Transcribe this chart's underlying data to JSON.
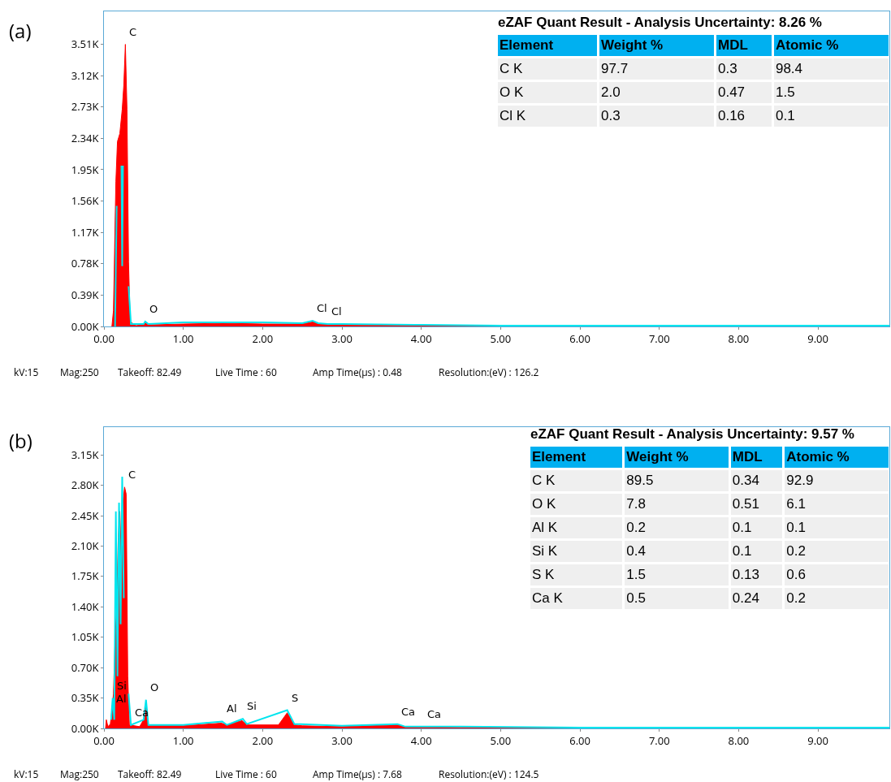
{
  "chart_data": [
    {
      "type": "area",
      "title": "(a)",
      "xlim": [
        0,
        9.9
      ],
      "ylim": [
        0,
        3920
      ],
      "grid": false,
      "xticks": [
        {
          "value": 0,
          "label": "0.00"
        },
        {
          "value": 1,
          "label": "1.00"
        },
        {
          "value": 2,
          "label": "2.00"
        },
        {
          "value": 3,
          "label": "3.00"
        },
        {
          "value": 4,
          "label": "4.00"
        },
        {
          "value": 5,
          "label": "5.00"
        },
        {
          "value": 6,
          "label": "6.00"
        },
        {
          "value": 7,
          "label": "7.00"
        },
        {
          "value": 8,
          "label": "8.00"
        },
        {
          "value": 9,
          "label": "9.00"
        }
      ],
      "yticks": [
        {
          "value": 0,
          "label": "0.00K"
        },
        {
          "value": 390,
          "label": "0.39K"
        },
        {
          "value": 780,
          "label": "0.78K"
        },
        {
          "value": 1170,
          "label": "1.17K"
        },
        {
          "value": 1560,
          "label": "1.56K"
        },
        {
          "value": 1950,
          "label": "1.95K"
        },
        {
          "value": 2340,
          "label": "2.34K"
        },
        {
          "value": 2730,
          "label": "2.73K"
        },
        {
          "value": 3120,
          "label": "3.12K"
        },
        {
          "value": 3510,
          "label": "3.51K"
        }
      ],
      "series": [
        {
          "type": "area",
          "color": "#ff0000",
          "x": [
            0.1,
            0.12,
            0.15,
            0.17,
            0.2,
            0.23,
            0.25,
            0.27,
            0.29,
            0.31,
            0.33,
            0.4,
            0.5,
            0.52,
            0.55,
            0.6,
            1.0,
            1.5,
            2.0,
            2.5,
            2.6,
            2.65,
            2.7,
            3.0,
            4.0,
            5.0,
            7.0,
            9.9
          ],
          "values": [
            0,
            200,
            1800,
            2300,
            2400,
            2700,
            3000,
            3510,
            2700,
            800,
            60,
            10,
            20,
            50,
            20,
            20,
            30,
            40,
            30,
            30,
            50,
            60,
            30,
            20,
            10,
            10,
            0,
            0
          ]
        },
        {
          "type": "line",
          "color": "#00e5ee",
          "x": [
            0.14,
            0.16,
            0.175,
            0.2,
            0.22,
            0.23,
            0.24,
            0.27,
            0.285,
            0.31,
            0.34,
            0.5,
            0.52,
            0.56,
            1.0,
            1.5,
            2.0,
            2.5,
            2.63,
            2.7,
            2.82,
            3.0,
            4.0,
            5.0,
            7.0,
            9.9
          ],
          "values": [
            0,
            1500,
            null,
            null,
            2000,
            750,
            2000,
            null,
            null,
            500,
            30,
            30,
            60,
            30,
            50,
            50,
            50,
            40,
            70,
            40,
            30,
            30,
            20,
            10,
            10,
            10
          ]
        }
      ],
      "annotations": [
        {
          "text": "C",
          "x": 0.27,
          "y": 3510
        },
        {
          "text": "O",
          "x": 0.52,
          "y": 60
        },
        {
          "text": "Cl",
          "x": 2.63,
          "y": 70
        },
        {
          "text": "Cl",
          "x": 2.82,
          "y": 30
        },
        "kV:15",
        "Mag:250",
        "Takeoff: 82.49",
        "Live Time : 60",
        "Amp Time(μs) : 0.48",
        "Resolution:(eV) : 126.2"
      ]
    },
    {
      "type": "other",
      "title": "eZAF Quant Result - Analysis Uncertainty: 8.26 %",
      "annotations": [
        "Element",
        "Weight %",
        "MDL",
        "Atomic %",
        "C K",
        "97.7",
        "0.3",
        "98.4",
        "O K",
        "2.0",
        "0.47",
        "1.5",
        "Cl K",
        "0.3",
        "0.16",
        "0.1"
      ]
    },
    {
      "type": "area",
      "title": "(b)",
      "xlim": [
        0,
        9.9
      ],
      "ylim": [
        0,
        3470
      ],
      "grid": false,
      "xticks": [
        {
          "value": 0,
          "label": "0.00"
        },
        {
          "value": 1,
          "label": "1.00"
        },
        {
          "value": 2,
          "label": "2.00"
        },
        {
          "value": 3,
          "label": "3.00"
        },
        {
          "value": 4,
          "label": "4.00"
        },
        {
          "value": 5,
          "label": "5.00"
        },
        {
          "value": 6,
          "label": "6.00"
        },
        {
          "value": 7,
          "label": "7.00"
        },
        {
          "value": 8,
          "label": "8.00"
        },
        {
          "value": 9,
          "label": "9.00"
        }
      ],
      "yticks": [
        {
          "value": 0,
          "label": "0.00K"
        },
        {
          "value": 350,
          "label": "0.35K"
        },
        {
          "value": 700,
          "label": "0.70K"
        },
        {
          "value": 1050,
          "label": "1.05K"
        },
        {
          "value": 1400,
          "label": "1.40K"
        },
        {
          "value": 1750,
          "label": "1.75K"
        },
        {
          "value": 2100,
          "label": "2.10K"
        },
        {
          "value": 2450,
          "label": "2.45K"
        },
        {
          "value": 2800,
          "label": "2.80K"
        },
        {
          "value": 3150,
          "label": "3.15K"
        }
      ],
      "series": [
        {
          "type": "area",
          "color": "#ff0000",
          "x": [
            0.02,
            0.03,
            0.05,
            0.08,
            0.1,
            0.12,
            0.14,
            0.16,
            0.18,
            0.2,
            0.22,
            0.24,
            0.26,
            0.28,
            0.3,
            0.32,
            0.45,
            0.5,
            0.53,
            0.56,
            1.0,
            1.48,
            1.55,
            1.74,
            1.8,
            2.2,
            2.31,
            2.4,
            2.5,
            3.0,
            3.69,
            3.8,
            4.5,
            6.0,
            9.9
          ],
          "values": [
            0,
            100,
            20,
            50,
            200,
            400,
            1000,
            1400,
            2200,
            2500,
            1900,
            2600,
            2780,
            2700,
            600,
            40,
            20,
            100,
            250,
            30,
            30,
            60,
            40,
            90,
            40,
            40,
            180,
            40,
            30,
            20,
            40,
            20,
            10,
            10,
            0
          ]
        },
        {
          "type": "line",
          "color": "#00e5ee",
          "x": [
            0.09,
            0.11,
            0.13,
            0.15,
            0.17,
            0.19,
            0.21,
            0.23,
            0.25,
            0.275,
            0.28,
            0.29,
            0.31,
            0.34,
            0.5,
            0.53,
            0.56,
            1.0,
            1.49,
            1.55,
            1.75,
            1.8,
            2.31,
            2.4,
            2.48,
            3.0,
            3.7,
            3.8,
            4.02,
            4.5,
            6.0,
            9.9
          ],
          "values": [
            100,
            350,
            100,
            2500,
            600,
            2600,
            1200,
            2900,
            1500,
            null,
            null,
            null,
            400,
            40,
            100,
            330,
            40,
            40,
            80,
            40,
            110,
            50,
            210,
            50,
            50,
            30,
            50,
            20,
            20,
            20,
            10,
            10
          ]
        }
      ],
      "annotations": [
        {
          "text": "C",
          "x": 0.26,
          "y": 2780
        },
        {
          "text": "Si",
          "x": 0.11,
          "y": 350
        },
        {
          "text": "Al",
          "x": 0.1,
          "y": 200
        },
        {
          "text": "Ca",
          "x": 0.34,
          "y": 40
        },
        {
          "text": "O",
          "x": 0.53,
          "y": 330
        },
        {
          "text": "Al",
          "x": 1.49,
          "y": 80
        },
        {
          "text": "Si",
          "x": 1.75,
          "y": 110
        },
        {
          "text": "S",
          "x": 2.31,
          "y": 210
        },
        {
          "text": "Ca",
          "x": 3.7,
          "y": 50
        },
        {
          "text": "Ca",
          "x": 4.02,
          "y": 20
        },
        "kV:15",
        "Mag:250",
        "Takeoff: 82.49",
        "Live Time : 60",
        "Amp Time(μs) : 7.68",
        "Resolution:(eV) : 124.5"
      ]
    },
    {
      "type": "other",
      "title": "eZAF Quant Result - Analysis Uncertainty: 9.57 %",
      "annotations": [
        "Element",
        "Weight %",
        "MDL",
        "Atomic %",
        "C K",
        "89.5",
        "0.34",
        "92.9",
        "O K",
        "7.8",
        "0.51",
        "6.1",
        "Al K",
        "0.2",
        "0.1",
        "0.1",
        "Si K",
        "0.4",
        "0.1",
        "0.2",
        "S K",
        "1.5",
        "0.13",
        "0.6",
        "Ca K",
        "0.5",
        "0.24",
        "0.2"
      ]
    }
  ]
}
